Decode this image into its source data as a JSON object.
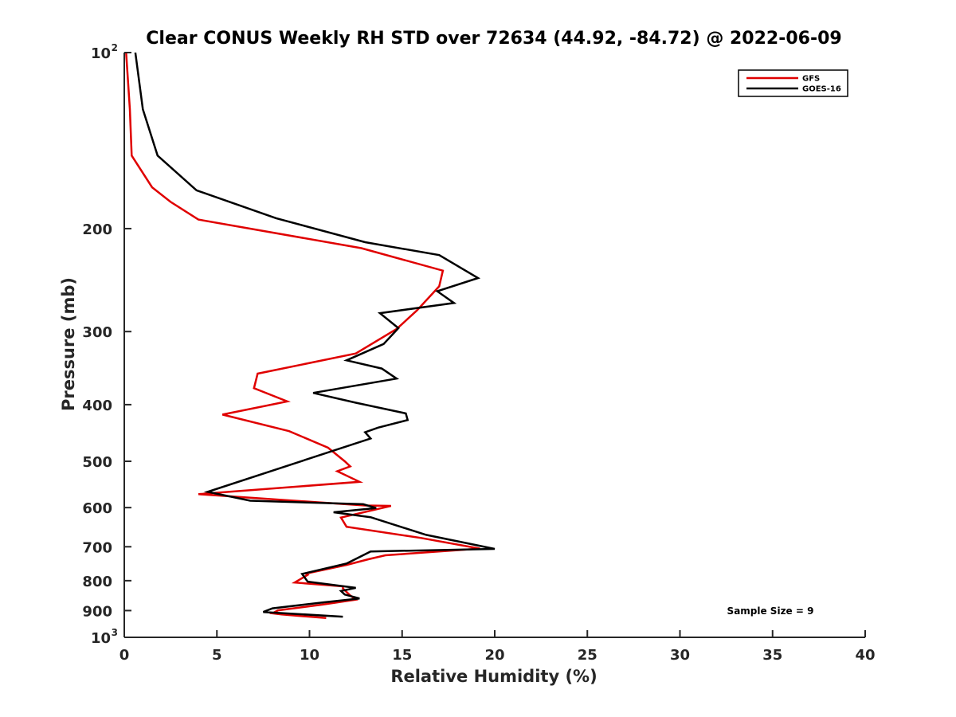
{
  "chart_data": {
    "type": "line",
    "title": "Clear CONUS Weekly RH STD over 72634 (44.92, -84.72) @ 2022-06-09",
    "xlabel": "Relative Humidity (%)",
    "ylabel": "Pressure (mb)",
    "xlim": [
      0,
      40
    ],
    "ylim": [
      100,
      1000
    ],
    "yscale": "log",
    "y_reversed": true,
    "x_ticks": [
      "0",
      "5",
      "10",
      "15",
      "20",
      "25",
      "30",
      "35",
      "40"
    ],
    "y_ticks": [
      {
        "value": 100,
        "label": "10",
        "sup": "2"
      },
      {
        "value": 200,
        "label": "200",
        "sup": ""
      },
      {
        "value": 300,
        "label": "300",
        "sup": ""
      },
      {
        "value": 400,
        "label": "400",
        "sup": ""
      },
      {
        "value": 500,
        "label": "500",
        "sup": ""
      },
      {
        "value": 600,
        "label": "600",
        "sup": ""
      },
      {
        "value": 700,
        "label": "700",
        "sup": ""
      },
      {
        "value": 800,
        "label": "800",
        "sup": ""
      },
      {
        "value": 900,
        "label": "900",
        "sup": ""
      },
      {
        "value": 1000,
        "label": "10",
        "sup": "3"
      }
    ],
    "legend_position": "top-right",
    "annotation": "Sample Size = 9",
    "series": [
      {
        "name": "GFS",
        "color": "#e00000",
        "points": [
          [
            0.1,
            100
          ],
          [
            0.3,
            125
          ],
          [
            0.4,
            150
          ],
          [
            1.5,
            170
          ],
          [
            2.5,
            180
          ],
          [
            4.0,
            193
          ],
          [
            12.8,
            216
          ],
          [
            17.2,
            236
          ],
          [
            17.0,
            251
          ],
          [
            15.8,
            276
          ],
          [
            14.7,
            297
          ],
          [
            12.5,
            327
          ],
          [
            7.2,
            354
          ],
          [
            7.0,
            375
          ],
          [
            8.8,
            395
          ],
          [
            5.3,
            416
          ],
          [
            8.9,
            444
          ],
          [
            11.0,
            474
          ],
          [
            11.9,
            500
          ],
          [
            12.2,
            510
          ],
          [
            11.5,
            520
          ],
          [
            12.7,
            542
          ],
          [
            4.0,
            569
          ],
          [
            13.0,
            595
          ],
          [
            14.4,
            596
          ],
          [
            11.7,
            624
          ],
          [
            12.0,
            647
          ],
          [
            16.0,
            676
          ],
          [
            19.2,
            705
          ],
          [
            14.1,
            724
          ],
          [
            13.2,
            735
          ],
          [
            12.0,
            752
          ],
          [
            9.8,
            778
          ],
          [
            9.9,
            782
          ],
          [
            9.2,
            806
          ],
          [
            11.8,
            818
          ],
          [
            11.8,
            825
          ],
          [
            12.2,
            848
          ],
          [
            12.5,
            862
          ],
          [
            10.7,
            879
          ],
          [
            8.3,
            899
          ],
          [
            8.0,
            910
          ],
          [
            8.5,
            914
          ],
          [
            10.9,
            927
          ]
        ]
      },
      {
        "name": "GOES-16",
        "color": "#000000",
        "points": [
          [
            0.6,
            100
          ],
          [
            1.0,
            125
          ],
          [
            1.8,
            150
          ],
          [
            3.9,
            172
          ],
          [
            8.2,
            192
          ],
          [
            13.0,
            211
          ],
          [
            17.0,
            222
          ],
          [
            19.1,
            243
          ],
          [
            16.9,
            256
          ],
          [
            17.8,
            268
          ],
          [
            13.8,
            279
          ],
          [
            14.8,
            296
          ],
          [
            14.0,
            315
          ],
          [
            12.0,
            336
          ],
          [
            13.9,
            347
          ],
          [
            14.7,
            361
          ],
          [
            10.2,
            382
          ],
          [
            12.5,
            397
          ],
          [
            15.2,
            414
          ],
          [
            15.3,
            425
          ],
          [
            13.7,
            438
          ],
          [
            13.0,
            446
          ],
          [
            13.3,
            457
          ],
          [
            4.5,
            564
          ],
          [
            6.8,
            584
          ],
          [
            12.9,
            592
          ],
          [
            13.6,
            601
          ],
          [
            11.3,
            611
          ],
          [
            13.3,
            623
          ],
          [
            16.3,
            668
          ],
          [
            20.0,
            706
          ],
          [
            13.3,
            713
          ],
          [
            12.0,
            748
          ],
          [
            9.6,
            779
          ],
          [
            9.9,
            803
          ],
          [
            12.5,
            823
          ],
          [
            11.7,
            833
          ],
          [
            11.9,
            845
          ],
          [
            12.7,
            858
          ],
          [
            10.8,
            871
          ],
          [
            8.0,
            892
          ],
          [
            7.5,
            905
          ],
          [
            11.8,
            922
          ]
        ]
      }
    ]
  }
}
